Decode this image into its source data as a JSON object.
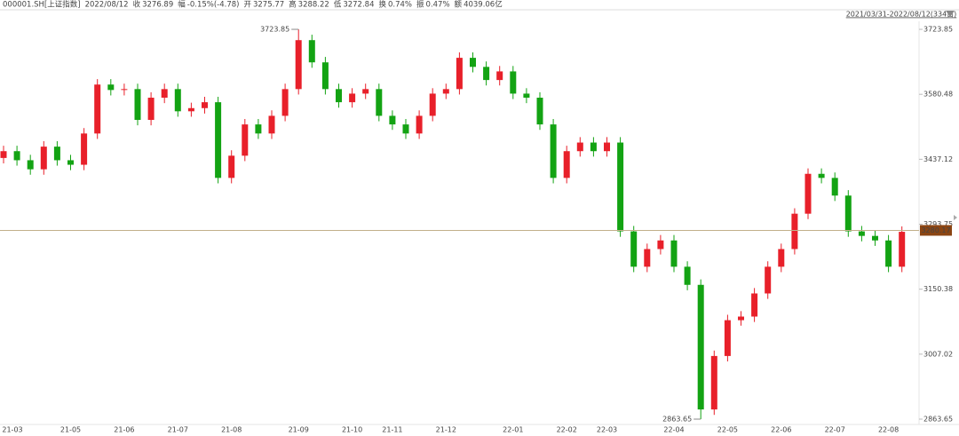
{
  "header": {
    "code": "000001.SH[上证指数]",
    "date": "2022/08/12",
    "items": [
      {
        "label": "收",
        "value": "3276.89"
      },
      {
        "label": "幅",
        "value": "-0.15%(-4.78)"
      },
      {
        "label": "开",
        "value": "3275.77"
      },
      {
        "label": "高",
        "value": "3288.22"
      },
      {
        "label": "低",
        "value": "3272.84"
      },
      {
        "label": "换",
        "value": "0.74%"
      },
      {
        "label": "振",
        "value": "0.47%"
      },
      {
        "label": "额",
        "value": "4039.06亿"
      }
    ]
  },
  "chart_data": {
    "type": "candlestick",
    "range_label": "2021/03/31-2022/08/12(334日)",
    "categories": [
      "21-03",
      null,
      null,
      null,
      null,
      "21-05",
      null,
      null,
      null,
      "21-06",
      null,
      null,
      null,
      "21-07",
      null,
      null,
      null,
      "21-08",
      null,
      null,
      null,
      null,
      "21-09",
      null,
      null,
      null,
      "21-10",
      null,
      null,
      "21-11",
      null,
      null,
      null,
      "21-12",
      null,
      null,
      null,
      null,
      "22-01",
      null,
      null,
      null,
      "22-02",
      null,
      null,
      "22-03",
      null,
      null,
      null,
      null,
      "22-04",
      null,
      null,
      null,
      "22-05",
      null,
      null,
      null,
      "22-06",
      null,
      null,
      null,
      "22-07",
      null,
      null,
      null,
      "22-08",
      null
    ],
    "open": [
      3440,
      3455,
      3435,
      3415,
      3465,
      3435,
      3425,
      3494,
      3602,
      3590,
      3592,
      3524,
      3573,
      3592,
      3543,
      3550,
      3563,
      3396,
      3445,
      3514,
      3494,
      3533,
      3592,
      3700,
      3651,
      3592,
      3563,
      3582,
      3592,
      3533,
      3514,
      3494,
      3533,
      3582,
      3592,
      3661,
      3641,
      3612,
      3631,
      3582,
      3573,
      3514,
      3396,
      3455,
      3474,
      3455,
      3474,
      3278,
      3200,
      3239,
      3258,
      3200,
      3160,
      2885,
      3003,
      3082,
      3090,
      3141,
      3200,
      3239,
      3317,
      3405,
      3396,
      3357,
      3278,
      3268,
      3258,
      3200
    ],
    "high": [
      3467,
      3467,
      3447,
      3477,
      3477,
      3447,
      3506,
      3614,
      3614,
      3604,
      3604,
      3585,
      3604,
      3604,
      3562,
      3575,
      3575,
      3457,
      3526,
      3526,
      3545,
      3604,
      3723.85,
      3712,
      3663,
      3604,
      3594,
      3604,
      3604,
      3545,
      3526,
      3545,
      3594,
      3604,
      3673,
      3673,
      3653,
      3643,
      3643,
      3594,
      3585,
      3526,
      3467,
      3486,
      3486,
      3486,
      3486,
      3290,
      3251,
      3270,
      3270,
      3212,
      3172,
      3015,
      3094,
      3102,
      3153,
      3212,
      3251,
      3329,
      3417,
      3417,
      3408,
      3369,
      3290,
      3280,
      3270,
      3289
    ],
    "low": [
      3428,
      3423,
      3403,
      3403,
      3423,
      3413,
      3413,
      3482,
      3578,
      3578,
      3512,
      3512,
      3561,
      3531,
      3531,
      3538,
      3384,
      3384,
      3433,
      3482,
      3482,
      3521,
      3580,
      3639,
      3580,
      3551,
      3551,
      3570,
      3521,
      3502,
      3482,
      3482,
      3521,
      3570,
      3580,
      3629,
      3600,
      3600,
      3570,
      3561,
      3502,
      3384,
      3384,
      3443,
      3443,
      3443,
      3266,
      3188,
      3188,
      3227,
      3188,
      3148,
      2863.65,
      2873,
      2991,
      3070,
      3078,
      3129,
      3188,
      3227,
      3305,
      3384,
      3345,
      3266,
      3256,
      3246,
      3188,
      3188
    ],
    "close": [
      3455,
      3435,
      3415,
      3465,
      3435,
      3425,
      3494,
      3602,
      3590,
      3592,
      3524,
      3573,
      3592,
      3543,
      3550,
      3563,
      3396,
      3445,
      3514,
      3494,
      3533,
      3592,
      3700,
      3651,
      3592,
      3563,
      3582,
      3592,
      3533,
      3514,
      3494,
      3533,
      3582,
      3592,
      3661,
      3641,
      3612,
      3631,
      3582,
      3573,
      3514,
      3396,
      3455,
      3474,
      3455,
      3474,
      3278,
      3200,
      3239,
      3258,
      3200,
      3160,
      2885,
      3003,
      3082,
      3090,
      3141,
      3200,
      3239,
      3317,
      3405,
      3396,
      3357,
      3278,
      3268,
      3258,
      3200,
      3277
    ],
    "up_color": "#e8202a",
    "down_color": "#13a313",
    "last_price": 3280.17,
    "ylim": [
      2851.9,
      3739.6
    ],
    "yticks": [
      2863.65,
      3007.02,
      3150.38,
      3293.75,
      3437.12,
      3580.48,
      3723.85
    ]
  }
}
